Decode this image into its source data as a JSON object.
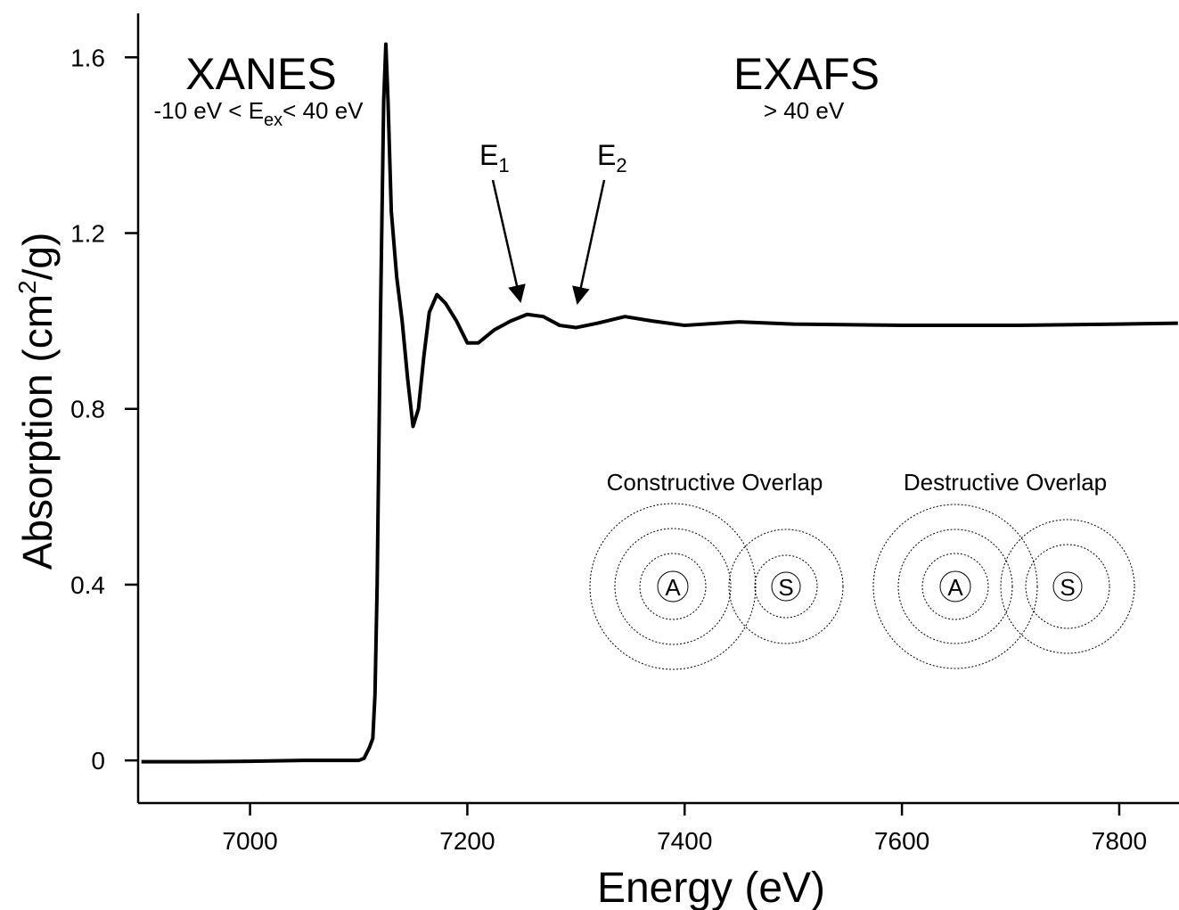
{
  "chart_data": {
    "type": "line",
    "xlabel": "Energy (eV)",
    "ylabel": [
      "Absorption (cm",
      "2",
      "/g)"
    ],
    "x": [
      6900,
      6950,
      7000,
      7050,
      7100,
      7105,
      7110,
      7113,
      7115,
      7117,
      7120,
      7123,
      7125,
      7127,
      7130,
      7135,
      7140,
      7145,
      7150,
      7155,
      7160,
      7165,
      7172,
      7180,
      7190,
      7200,
      7210,
      7225,
      7240,
      7255,
      7270,
      7285,
      7300,
      7320,
      7345,
      7370,
      7400,
      7450,
      7500,
      7600,
      7700,
      7800,
      7854
    ],
    "values": [
      -0.003,
      -0.003,
      -0.002,
      0.0,
      0.0,
      0.005,
      0.03,
      0.05,
      0.15,
      0.4,
      1.0,
      1.5,
      1.63,
      1.5,
      1.25,
      1.1,
      1.0,
      0.87,
      0.76,
      0.8,
      0.92,
      1.02,
      1.06,
      1.04,
      1.0,
      0.95,
      0.95,
      0.98,
      1.0,
      1.015,
      1.01,
      0.99,
      0.985,
      0.995,
      1.01,
      1.0,
      0.99,
      0.998,
      0.993,
      0.99,
      0.99,
      0.993,
      0.995
    ],
    "color": "#000000",
    "xlim": [
      6897,
      7855
    ],
    "xticks": [
      7000,
      7200,
      7400,
      7600,
      7800
    ],
    "ylim": [
      -0.097,
      1.7
    ],
    "yticks": [
      0,
      0.4,
      0.8,
      1.2,
      1.6
    ],
    "grid": false,
    "annotations": {
      "xanes": "XANES",
      "xanes_range": [
        "-10 eV < E",
        "ex",
        "< 40 eV"
      ],
      "exafs": "EXAFS",
      "exafs_range": "> 40 eV",
      "e1": [
        "E",
        "1"
      ],
      "e2": [
        "E",
        "2"
      ]
    },
    "diagrams": [
      {
        "title": "Constructive Overlap",
        "absorber": "A",
        "scatterer": "S"
      },
      {
        "title": "Destructive Overlap",
        "absorber": "A",
        "scatterer": "S"
      }
    ]
  }
}
